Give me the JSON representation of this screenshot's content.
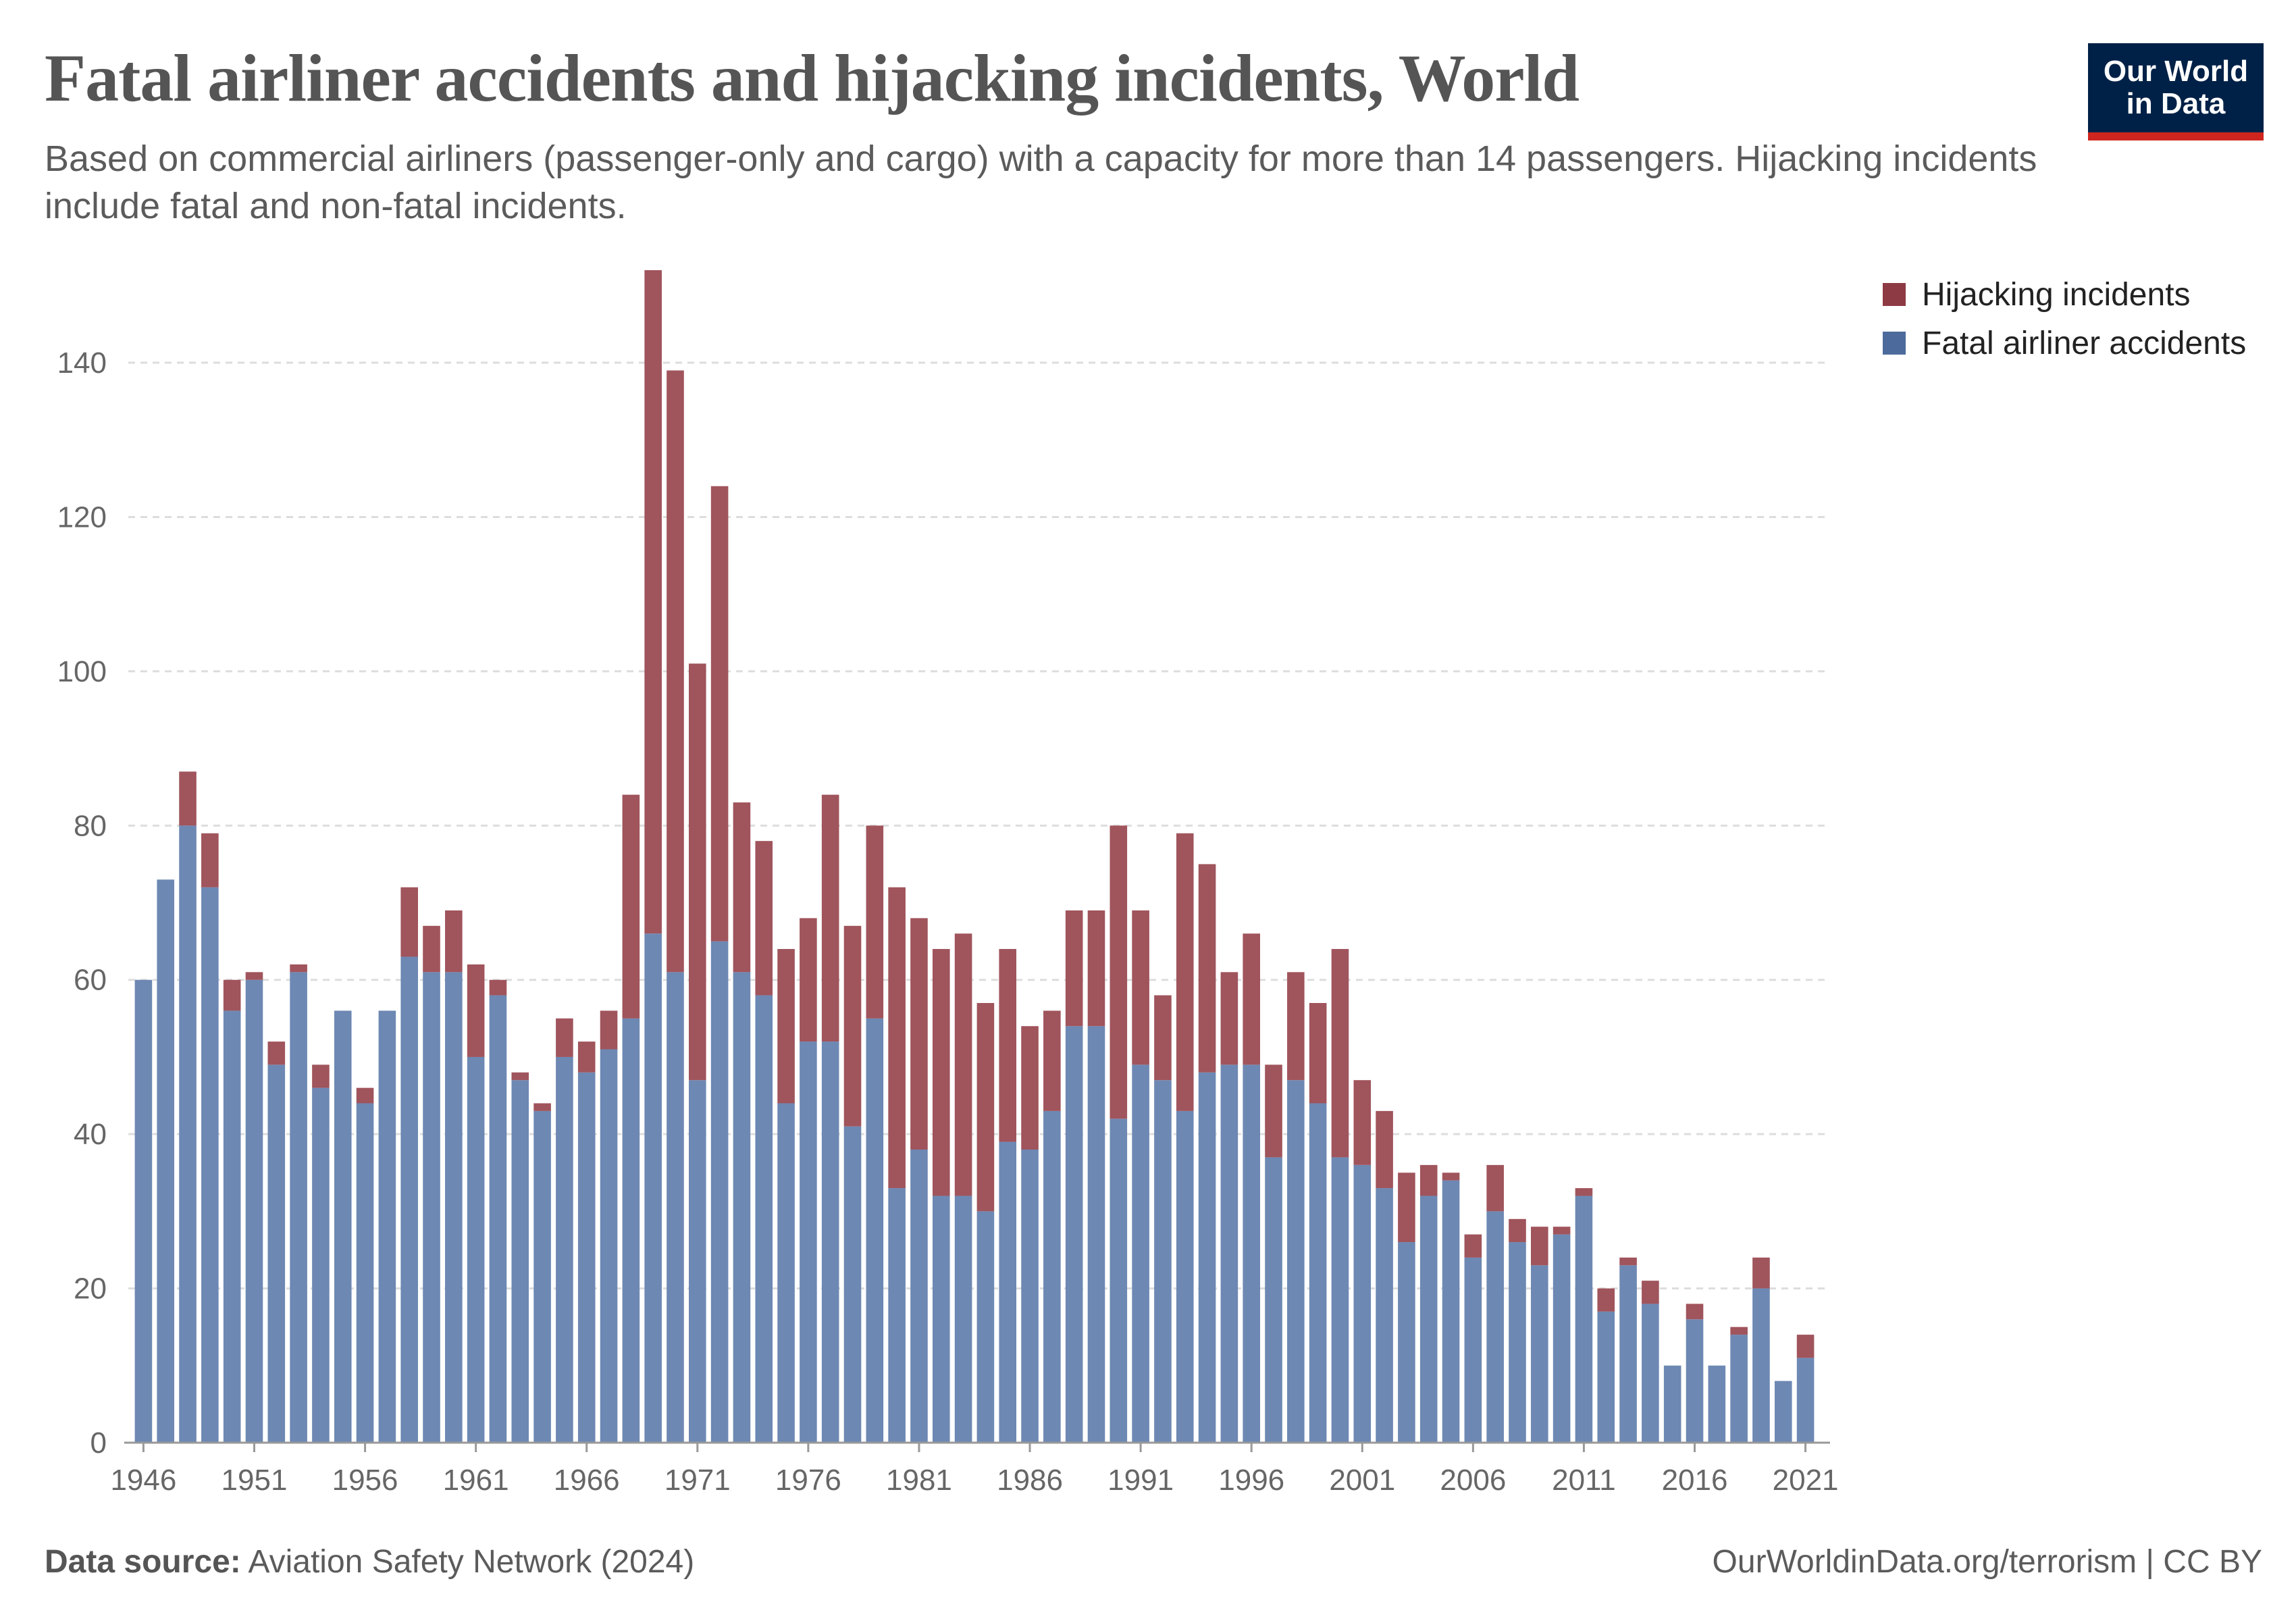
{
  "title": "Fatal airliner accidents and hijacking incidents, World",
  "subtitle": "Based on commercial airliners (passenger-only and cargo) with a capacity for more than 14 passengers. Hijacking incidents include fatal and non-fatal incidents.",
  "logo": {
    "line1": "Our World",
    "line2": "in Data"
  },
  "footer": {
    "source_label": "Data source:",
    "source_text": "Aviation Safety Network (2024)",
    "url_text": "OurWorldinData.org/terrorism | CC BY"
  },
  "colors": {
    "accidents": "#6d88b3",
    "hijacking": "#a0545c",
    "logo_bg": "#002147",
    "logo_accent": "#ce261e"
  },
  "chart_data": {
    "type": "bar",
    "stacked": true,
    "grid": "horizontal-dashed",
    "legend_position": "top-right",
    "ylim": [
      0,
      152
    ],
    "yticks": [
      0,
      20,
      40,
      60,
      80,
      100,
      120,
      140
    ],
    "xticks": [
      1946,
      1951,
      1956,
      1961,
      1966,
      1971,
      1976,
      1981,
      1986,
      1991,
      1996,
      2001,
      2006,
      2011,
      2016,
      2021
    ],
    "categories": [
      1946,
      1947,
      1948,
      1949,
      1950,
      1951,
      1952,
      1953,
      1954,
      1955,
      1956,
      1957,
      1958,
      1959,
      1960,
      1961,
      1962,
      1963,
      1964,
      1965,
      1966,
      1967,
      1968,
      1969,
      1970,
      1971,
      1972,
      1973,
      1974,
      1975,
      1976,
      1977,
      1978,
      1979,
      1980,
      1981,
      1982,
      1983,
      1984,
      1985,
      1986,
      1987,
      1988,
      1989,
      1990,
      1991,
      1992,
      1993,
      1994,
      1995,
      1996,
      1997,
      1998,
      1999,
      2000,
      2001,
      2002,
      2003,
      2004,
      2005,
      2006,
      2007,
      2008,
      2009,
      2010,
      2011,
      2012,
      2013,
      2014,
      2015,
      2016,
      2017,
      2018,
      2019,
      2020,
      2021
    ],
    "series": [
      {
        "name": "Fatal airliner accidents",
        "color": "#6d88b3",
        "values": [
          60,
          73,
          80,
          72,
          56,
          60,
          49,
          61,
          46,
          56,
          44,
          56,
          63,
          61,
          61,
          50,
          58,
          47,
          43,
          50,
          48,
          51,
          55,
          66,
          61,
          47,
          65,
          61,
          58,
          44,
          52,
          52,
          41,
          55,
          33,
          38,
          32,
          32,
          30,
          39,
          38,
          43,
          54,
          54,
          42,
          49,
          47,
          43,
          48,
          49,
          49,
          37,
          47,
          44,
          37,
          36,
          33,
          26,
          32,
          34,
          24,
          30,
          26,
          23,
          27,
          32,
          17,
          23,
          18,
          10,
          16,
          10,
          14,
          20,
          8,
          11
        ]
      },
      {
        "name": "Hijacking incidents",
        "color": "#a0545c",
        "values": [
          0,
          0,
          7,
          7,
          4,
          1,
          3,
          1,
          3,
          0,
          2,
          0,
          9,
          6,
          8,
          12,
          2,
          1,
          1,
          5,
          4,
          5,
          29,
          86,
          78,
          54,
          59,
          22,
          20,
          20,
          16,
          32,
          26,
          25,
          39,
          30,
          32,
          34,
          27,
          25,
          16,
          13,
          15,
          15,
          38,
          20,
          11,
          36,
          27,
          12,
          17,
          12,
          14,
          13,
          27,
          11,
          10,
          9,
          4,
          1,
          3,
          6,
          3,
          5,
          1,
          1,
          3,
          1,
          3,
          0,
          2,
          0,
          1,
          4,
          0,
          3
        ]
      }
    ]
  }
}
